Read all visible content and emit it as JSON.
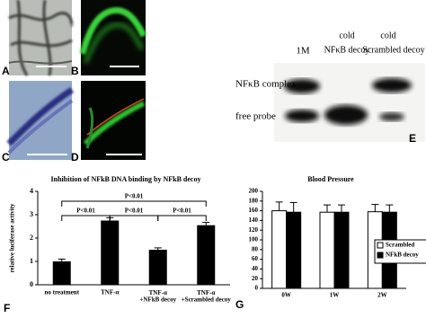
{
  "panel_labels": [
    "A",
    "B",
    "C",
    "D",
    "E",
    "F",
    "G"
  ],
  "gel": {
    "lanes": [
      "1M",
      "cold",
      "NFκB decoy",
      "cold",
      "Scrambled decoy"
    ],
    "rows": [
      "NFκB complex",
      "free probe"
    ]
  },
  "chart_data": [
    {
      "type": "bar",
      "title": "Inhibition of NFkB DNA binding by NFkB decoy",
      "y_label": "relative luciferase activity",
      "categories": [
        "no treatment",
        "TNF-α",
        "TNF-α\n+NFkB decoy",
        "TNF-α\n+Scrambled decoy"
      ],
      "values": [
        1.0,
        2.75,
        1.5,
        2.55
      ],
      "errors": [
        0.1,
        0.12,
        0.08,
        0.12
      ],
      "color": "#000000",
      "ylim": [
        0,
        4
      ],
      "yticks": [
        0,
        1,
        2,
        3,
        4
      ],
      "annotations": [
        "P<0.01",
        "P<0.01",
        "P<0.01",
        "P<0.01"
      ]
    },
    {
      "type": "grouped_bar",
      "title": "Blood Pressure",
      "categories": [
        "0W",
        "1W",
        "2W"
      ],
      "series": [
        {
          "name": "Scrambled",
          "color": "#ffffff",
          "values": [
            160,
            157,
            158
          ],
          "errors": [
            18,
            15,
            15
          ]
        },
        {
          "name": "NFkB decoy",
          "color": "#000000",
          "values": [
            157,
            157,
            157
          ],
          "errors": [
            20,
            15,
            15
          ]
        }
      ],
      "ylim": [
        0,
        200
      ],
      "yticks": [
        0,
        20,
        40,
        60,
        80,
        100,
        120,
        140,
        160,
        180,
        200
      ],
      "legend": "right"
    }
  ]
}
